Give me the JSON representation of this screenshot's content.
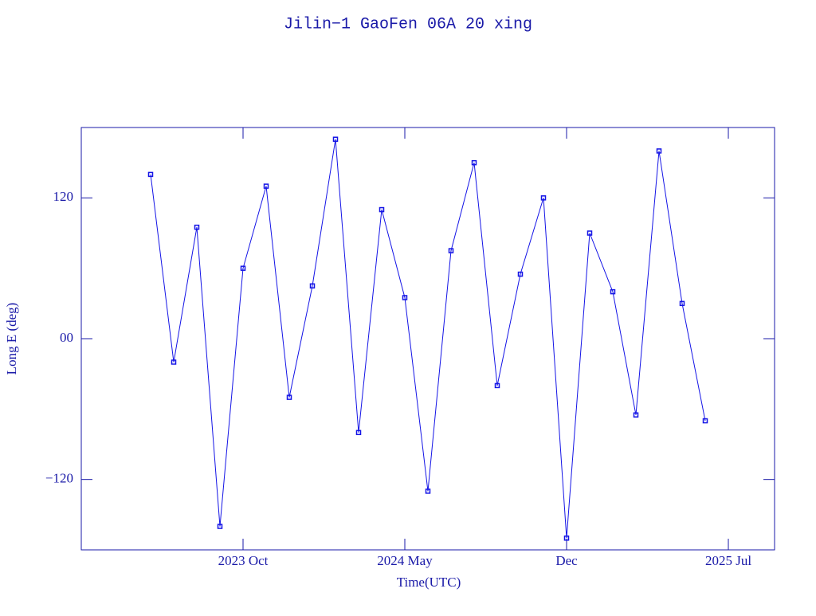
{
  "chart_data": {
    "type": "scatter",
    "title": "Jilin−1 GaoFen 06A 20 xing",
    "x_label": "Time(UTC)",
    "y_label": "Long E (deg)",
    "color": "#1414e6",
    "xlim": [
      "2023-03",
      "2025-09"
    ],
    "xticks": [
      {
        "value": "2023-10",
        "label": "2023 Oct"
      },
      {
        "value": "2024-05",
        "label": "2024 May"
      },
      {
        "value": "2024-12",
        "label": "Dec"
      },
      {
        "value": "2025-07",
        "label": "2025 Jul"
      }
    ],
    "ylim": [
      -180,
      180
    ],
    "yticks": [
      {
        "value": -120,
        "label": "−120"
      },
      {
        "value": 0,
        "label": "00"
      },
      120
    ],
    "x": [
      "2023-06",
      "2023-07",
      "2023-08",
      "2023-09",
      "2023-10",
      "2023-11",
      "2023-12",
      "2024-01",
      "2024-02",
      "2024-03",
      "2024-04",
      "2024-05",
      "2024-06",
      "2024-07",
      "2024-08",
      "2024-09",
      "2024-10",
      "2024-11",
      "2024-12",
      "2025-01",
      "2025-02",
      "2025-03",
      "2025-04",
      "2025-05",
      "2025-06"
    ],
    "values": [
      140,
      -20,
      95,
      -160,
      60,
      130,
      -50,
      45,
      170,
      -80,
      110,
      35,
      -130,
      75,
      150,
      -40,
      55,
      120,
      -170,
      90,
      40,
      -65,
      160,
      30,
      -70
    ]
  }
}
